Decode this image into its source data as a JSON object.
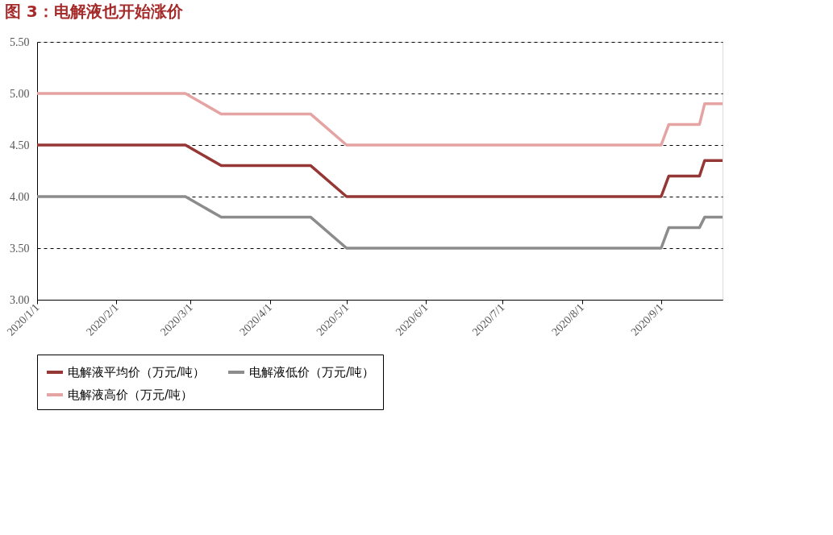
{
  "chart_data": {
    "type": "line",
    "title": "图 3：电解液也开始涨价",
    "x": [
      "2020-01-01",
      "2020-02-28",
      "2020-03-13",
      "2020-04-17",
      "2020-05-01",
      "2020-09-01",
      "2020-09-04",
      "2020-09-16",
      "2020-09-18",
      "2020-09-25"
    ],
    "series": [
      {
        "name": "电解液平均价（万元/吨）",
        "color": "#953735",
        "values": [
          4.5,
          4.5,
          4.3,
          4.3,
          4.0,
          4.0,
          4.2,
          4.2,
          4.35,
          4.35
        ]
      },
      {
        "name": "电解液低价（万元/吨）",
        "color": "#8c8c8c",
        "values": [
          4.0,
          4.0,
          3.8,
          3.8,
          3.5,
          3.5,
          3.7,
          3.7,
          3.8,
          3.8
        ]
      },
      {
        "name": "电解液高价（万元/吨）",
        "color": "#e6a3a3",
        "values": [
          5.0,
          5.0,
          4.8,
          4.8,
          4.5,
          4.5,
          4.7,
          4.7,
          4.9,
          4.9
        ]
      }
    ],
    "xlim": [
      "2020-01-01",
      "2020-09-25"
    ],
    "xticks": [
      {
        "value": "2020-01-01",
        "label": "2020/1/1"
      },
      {
        "value": "2020-02-01",
        "label": "2020/2/1"
      },
      {
        "value": "2020-03-01",
        "label": "2020/3/1"
      },
      {
        "value": "2020-04-01",
        "label": "2020/4/1"
      },
      {
        "value": "2020-05-01",
        "label": "2020/5/1"
      },
      {
        "value": "2020-06-01",
        "label": "2020/6/1"
      },
      {
        "value": "2020-07-01",
        "label": "2020/7/1"
      },
      {
        "value": "2020-08-01",
        "label": "2020/8/1"
      },
      {
        "value": "2020-09-01",
        "label": "2020/9/1"
      }
    ],
    "ylim": [
      3.0,
      5.5
    ],
    "yticks": [
      {
        "value": 3.0,
        "label": "3.00"
      },
      {
        "value": 3.5,
        "label": "3.50"
      },
      {
        "value": 4.0,
        "label": "4.00"
      },
      {
        "value": 4.5,
        "label": "4.50"
      },
      {
        "value": 5.0,
        "label": "5.00"
      },
      {
        "value": 5.5,
        "label": "5.50"
      }
    ],
    "grid": "y",
    "legend": "bottom",
    "marker": "none",
    "line_style": "solid"
  }
}
